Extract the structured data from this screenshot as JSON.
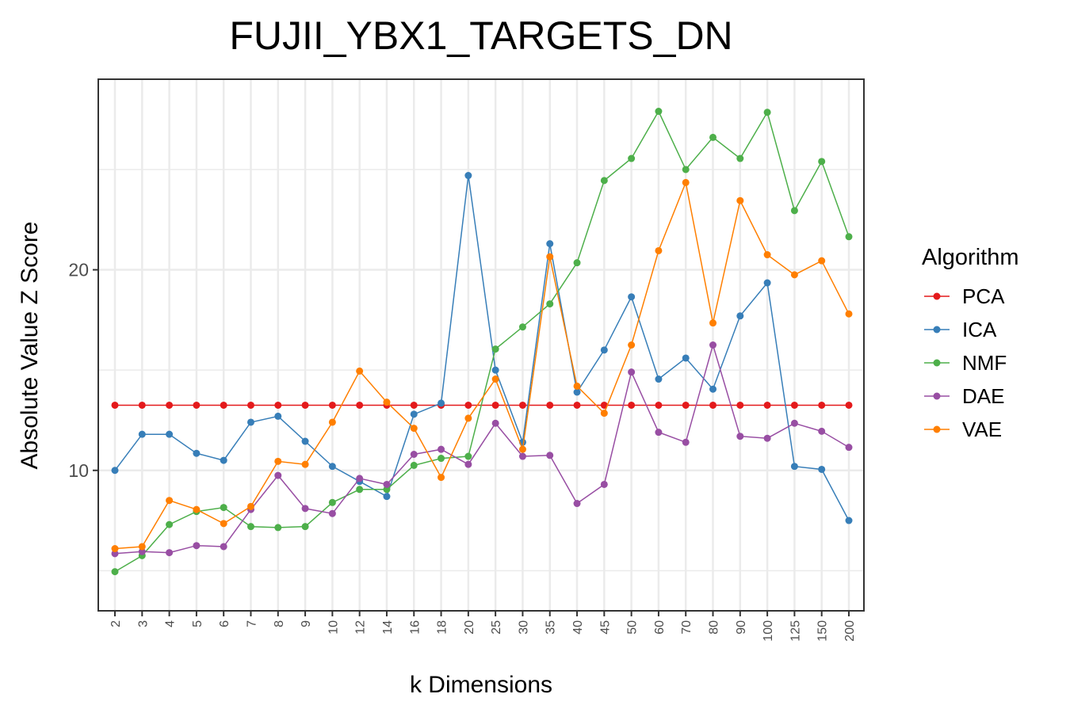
{
  "chart_data": {
    "type": "line",
    "title": "FUJII_YBX1_TARGETS_DN",
    "xlabel": "k Dimensions",
    "ylabel": "Absolute Value Z Score",
    "categories": [
      "2",
      "3",
      "4",
      "5",
      "6",
      "7",
      "8",
      "9",
      "10",
      "12",
      "14",
      "16",
      "18",
      "20",
      "25",
      "30",
      "35",
      "40",
      "45",
      "50",
      "60",
      "70",
      "80",
      "90",
      "100",
      "125",
      "150",
      "200"
    ],
    "ylim": [
      3,
      29.5
    ],
    "yticks": [
      10,
      20
    ],
    "yticks_labels": [
      "10",
      "20"
    ],
    "grid": true,
    "legend_title": "Algorithm",
    "legend_position": "right",
    "series": [
      {
        "name": "PCA",
        "color": "#e41a1c",
        "values": [
          13.25,
          13.25,
          13.25,
          13.25,
          13.25,
          13.25,
          13.25,
          13.25,
          13.25,
          13.25,
          13.25,
          13.25,
          13.25,
          13.25,
          13.25,
          13.25,
          13.25,
          13.25,
          13.25,
          13.25,
          13.25,
          13.25,
          13.25,
          13.25,
          13.25,
          13.25,
          13.25,
          13.25
        ]
      },
      {
        "name": "ICA",
        "color": "#377eb8",
        "values": [
          10.0,
          11.8,
          11.8,
          10.85,
          10.5,
          12.4,
          12.7,
          11.45,
          10.2,
          9.45,
          8.7,
          12.8,
          13.35,
          24.7,
          15.0,
          11.4,
          21.3,
          13.9,
          16.0,
          18.65,
          14.55,
          15.6,
          14.05,
          17.7,
          19.35,
          10.2,
          10.05,
          7.5
        ]
      },
      {
        "name": "NMF",
        "color": "#4daf4a",
        "values": [
          4.95,
          5.75,
          7.3,
          7.95,
          8.15,
          7.2,
          7.15,
          7.2,
          8.4,
          9.05,
          9.05,
          10.25,
          10.6,
          10.7,
          16.05,
          17.15,
          18.3,
          20.35,
          24.45,
          25.55,
          27.9,
          25.0,
          26.6,
          25.55,
          27.85,
          22.95,
          25.4,
          21.65
        ]
      },
      {
        "name": "DAE",
        "color": "#984ea3",
        "values": [
          5.85,
          5.95,
          5.9,
          6.25,
          6.2,
          8.05,
          9.75,
          8.1,
          7.85,
          9.6,
          9.3,
          10.8,
          11.05,
          10.3,
          12.35,
          10.7,
          10.75,
          8.35,
          9.3,
          14.9,
          11.9,
          11.4,
          16.25,
          11.7,
          11.6,
          12.35,
          11.95,
          11.15
        ]
      },
      {
        "name": "VAE",
        "color": "#ff7f00",
        "values": [
          6.1,
          6.2,
          8.5,
          8.05,
          7.35,
          8.2,
          10.45,
          10.3,
          12.4,
          14.95,
          13.4,
          12.1,
          9.65,
          12.6,
          14.55,
          11.05,
          20.65,
          14.2,
          12.85,
          16.25,
          20.95,
          24.35,
          17.35,
          23.45,
          20.75,
          19.75,
          20.45,
          17.8
        ]
      }
    ]
  }
}
